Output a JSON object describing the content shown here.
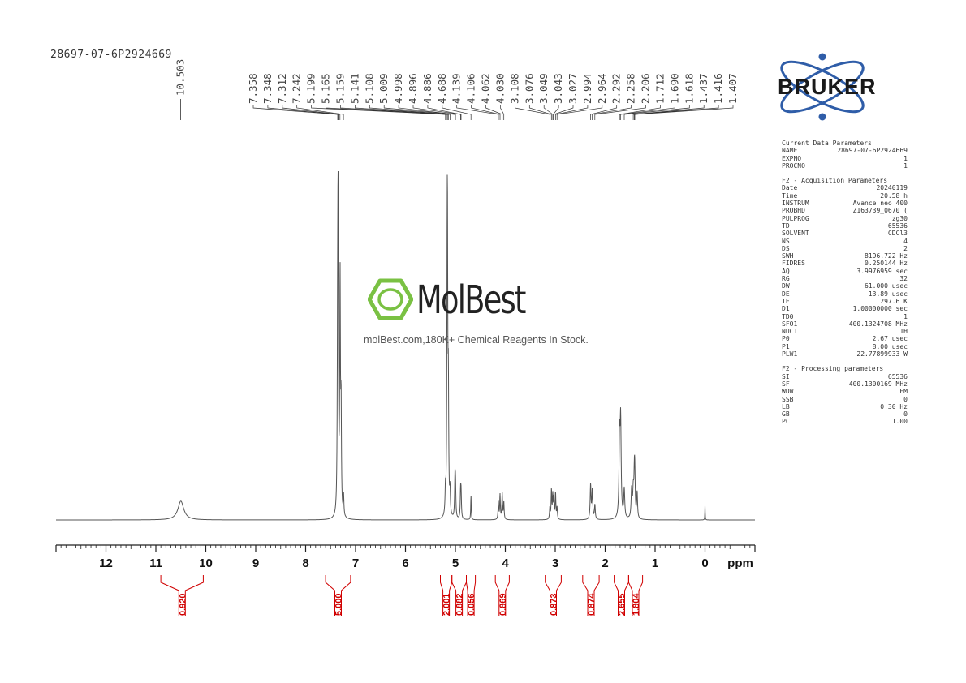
{
  "sample_id": "28697-07-6P2924669",
  "logo": {
    "name": "MolBest",
    "tagline": "molBest.com,180K+ Chemical Reagents In Stock."
  },
  "bruker_logo": "BRUKER",
  "params": {
    "current": {
      "header": "Current Data Parameters",
      "rows": [
        [
          "NAME",
          "28697-07-6P2924669"
        ],
        [
          "EXPNO",
          "1"
        ],
        [
          "PROCNO",
          "1"
        ]
      ]
    },
    "acquisition": {
      "header": "F2 - Acquisition Parameters",
      "rows": [
        [
          "Date_",
          "20240119"
        ],
        [
          "Time",
          "20.58 h"
        ],
        [
          "INSTRUM",
          "Avance neo 400"
        ],
        [
          "PROBHD",
          "Z163739_0670 ("
        ],
        [
          "PULPROG",
          "zg30"
        ],
        [
          "TD",
          "65536"
        ],
        [
          "SOLVENT",
          "CDCl3"
        ],
        [
          "NS",
          "4"
        ],
        [
          "DS",
          "2"
        ],
        [
          "SWH",
          "8196.722 Hz"
        ],
        [
          "FIDRES",
          "0.250144 Hz"
        ],
        [
          "AQ",
          "3.9976959 sec"
        ],
        [
          "RG",
          "32"
        ],
        [
          "DW",
          "61.000 usec"
        ],
        [
          "DE",
          "13.89 usec"
        ],
        [
          "TE",
          "297.6 K"
        ],
        [
          "D1",
          "1.00000000 sec"
        ],
        [
          "TD0",
          "1"
        ],
        [
          "SFO1",
          "400.1324708 MHz"
        ],
        [
          "NUC1",
          "1H"
        ],
        [
          "P0",
          "2.67 usec"
        ],
        [
          "P1",
          "8.00 usec"
        ],
        [
          "PLW1",
          "22.77899933 W"
        ]
      ]
    },
    "processing": {
      "header": "F2 - Processing parameters",
      "rows": [
        [
          "SI",
          "65536"
        ],
        [
          "SF",
          "400.1300169 MHz"
        ],
        [
          "WDW",
          "EM"
        ],
        [
          "SSB",
          "0"
        ],
        [
          "LB",
          "0.30 Hz"
        ],
        [
          "GB",
          "0"
        ],
        [
          "PC",
          "1.00"
        ]
      ]
    }
  },
  "colors": {
    "spectrum": "#555555",
    "integral": "#d00000",
    "bruker_blue": "#2f5da8"
  },
  "chart_data": {
    "type": "line",
    "xlabel": "ppm",
    "xlim": [
      13.0,
      -1.0
    ],
    "x_ticks": [
      12,
      11,
      10,
      9,
      8,
      7,
      6,
      5,
      4,
      3,
      2,
      1,
      0
    ],
    "peak_label_left": [
      "10.503"
    ],
    "peak_labels": [
      "7.358",
      "7.348",
      "7.312",
      "7.242",
      "5.199",
      "5.165",
      "5.159",
      "5.141",
      "5.108",
      "5.009",
      "4.998",
      "4.896",
      "4.886",
      "4.688",
      "4.139",
      "4.106",
      "4.062",
      "4.030",
      "3.108",
      "3.076",
      "3.049",
      "3.043",
      "3.027",
      "2.994",
      "2.964",
      "2.292",
      "2.258",
      "2.206",
      "1.712",
      "1.690",
      "1.618",
      "1.437",
      "1.416",
      "1.407"
    ],
    "peaks": [
      {
        "ppm": 10.5,
        "height": 0.065,
        "width": 0.07
      },
      {
        "ppm": 7.36,
        "height": 0.5,
        "width": 0.008
      },
      {
        "ppm": 7.35,
        "height": 0.98,
        "width": 0.008
      },
      {
        "ppm": 7.31,
        "height": 0.8,
        "width": 0.008
      },
      {
        "ppm": 7.29,
        "height": 0.35,
        "width": 0.008
      },
      {
        "ppm": 7.24,
        "height": 0.07,
        "width": 0.008
      },
      {
        "ppm": 5.2,
        "height": 0.08,
        "width": 0.008
      },
      {
        "ppm": 5.165,
        "height": 0.62,
        "width": 0.008
      },
      {
        "ppm": 5.159,
        "height": 0.68,
        "width": 0.008
      },
      {
        "ppm": 5.141,
        "height": 0.4,
        "width": 0.008
      },
      {
        "ppm": 5.108,
        "height": 0.08,
        "width": 0.008
      },
      {
        "ppm": 5.009,
        "height": 0.13,
        "width": 0.008
      },
      {
        "ppm": 4.998,
        "height": 0.11,
        "width": 0.008
      },
      {
        "ppm": 4.896,
        "height": 0.09,
        "width": 0.008
      },
      {
        "ppm": 4.886,
        "height": 0.08,
        "width": 0.008
      },
      {
        "ppm": 4.688,
        "height": 0.085,
        "width": 0.006
      },
      {
        "ppm": 4.139,
        "height": 0.06,
        "width": 0.008
      },
      {
        "ppm": 4.106,
        "height": 0.085,
        "width": 0.008
      },
      {
        "ppm": 4.062,
        "height": 0.09,
        "width": 0.008
      },
      {
        "ppm": 4.03,
        "height": 0.06,
        "width": 0.008
      },
      {
        "ppm": 3.108,
        "height": 0.04,
        "width": 0.008
      },
      {
        "ppm": 3.076,
        "height": 0.1,
        "width": 0.008
      },
      {
        "ppm": 3.049,
        "height": 0.08,
        "width": 0.008
      },
      {
        "ppm": 3.027,
        "height": 0.07,
        "width": 0.008
      },
      {
        "ppm": 2.994,
        "height": 0.09,
        "width": 0.008
      },
      {
        "ppm": 2.964,
        "height": 0.04,
        "width": 0.008
      },
      {
        "ppm": 2.292,
        "height": 0.12,
        "width": 0.01
      },
      {
        "ppm": 2.258,
        "height": 0.1,
        "width": 0.01
      },
      {
        "ppm": 2.206,
        "height": 0.05,
        "width": 0.01
      },
      {
        "ppm": 1.712,
        "height": 0.27,
        "width": 0.012
      },
      {
        "ppm": 1.69,
        "height": 0.32,
        "width": 0.012
      },
      {
        "ppm": 1.618,
        "height": 0.1,
        "width": 0.012
      },
      {
        "ppm": 1.47,
        "height": 0.1,
        "width": 0.012
      },
      {
        "ppm": 1.437,
        "height": 0.09,
        "width": 0.012
      },
      {
        "ppm": 1.416,
        "height": 0.11,
        "width": 0.01
      },
      {
        "ppm": 1.407,
        "height": 0.13,
        "width": 0.01
      },
      {
        "ppm": 1.36,
        "height": 0.09,
        "width": 0.01
      },
      {
        "ppm": 0.0,
        "height": 0.05,
        "width": 0.004
      }
    ],
    "integrals": [
      {
        "value": "0.920",
        "from": 10.9,
        "to": 10.05
      },
      {
        "value": "5.000",
        "from": 7.6,
        "to": 7.1
      },
      {
        "value": "2.001",
        "from": 5.3,
        "to": 5.07
      },
      {
        "value": "0.882",
        "from": 5.07,
        "to": 4.78
      },
      {
        "value": "0.056",
        "from": 4.78,
        "to": 4.6
      },
      {
        "value": "0.869",
        "from": 4.2,
        "to": 3.92
      },
      {
        "value": "0.873",
        "from": 3.2,
        "to": 2.88
      },
      {
        "value": "0.874",
        "from": 2.45,
        "to": 2.12
      },
      {
        "value": "2.655",
        "from": 1.82,
        "to": 1.53
      },
      {
        "value": "1.804",
        "from": 1.53,
        "to": 1.25
      }
    ]
  }
}
